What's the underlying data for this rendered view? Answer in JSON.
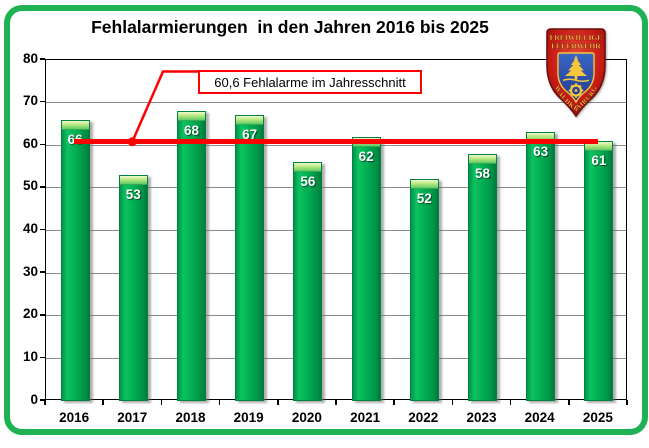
{
  "title": "Fehlalarmierungen  in den Jahren 2016 bis 2025",
  "chart_data": {
    "type": "bar",
    "title": "Fehlalarmierungen  in den Jahren 2016 bis 2025",
    "categories": [
      "2016",
      "2017",
      "2018",
      "2019",
      "2020",
      "2021",
      "2022",
      "2023",
      "2024",
      "2025"
    ],
    "values": [
      66,
      53,
      68,
      67,
      56,
      62,
      52,
      58,
      63,
      61
    ],
    "xlabel": "",
    "ylabel": "",
    "ylim": [
      0,
      80
    ],
    "ytick_step": 10,
    "grid": "horizontal",
    "legend": "none",
    "bar_color": "#00ab50",
    "bar_cap_color": "#b9e881",
    "average_line": {
      "value": 60.6,
      "color": "#fe0000",
      "label": "60,6 Fehlalarme im Jahresschnitt",
      "marker_category": "2017"
    }
  },
  "frame": {
    "border_color": "#1fb254"
  },
  "logo": {
    "name": "freiwillige-feuerwehr-waldkraiburg-crest",
    "line1": "FREIWILLIGE",
    "line2": "FEUERWEHR",
    "arc_text": "WALDKRAIBURG",
    "shield_red": "#c41a14",
    "shield_blue": "#2b50a8",
    "gold": "#f5c53c"
  }
}
